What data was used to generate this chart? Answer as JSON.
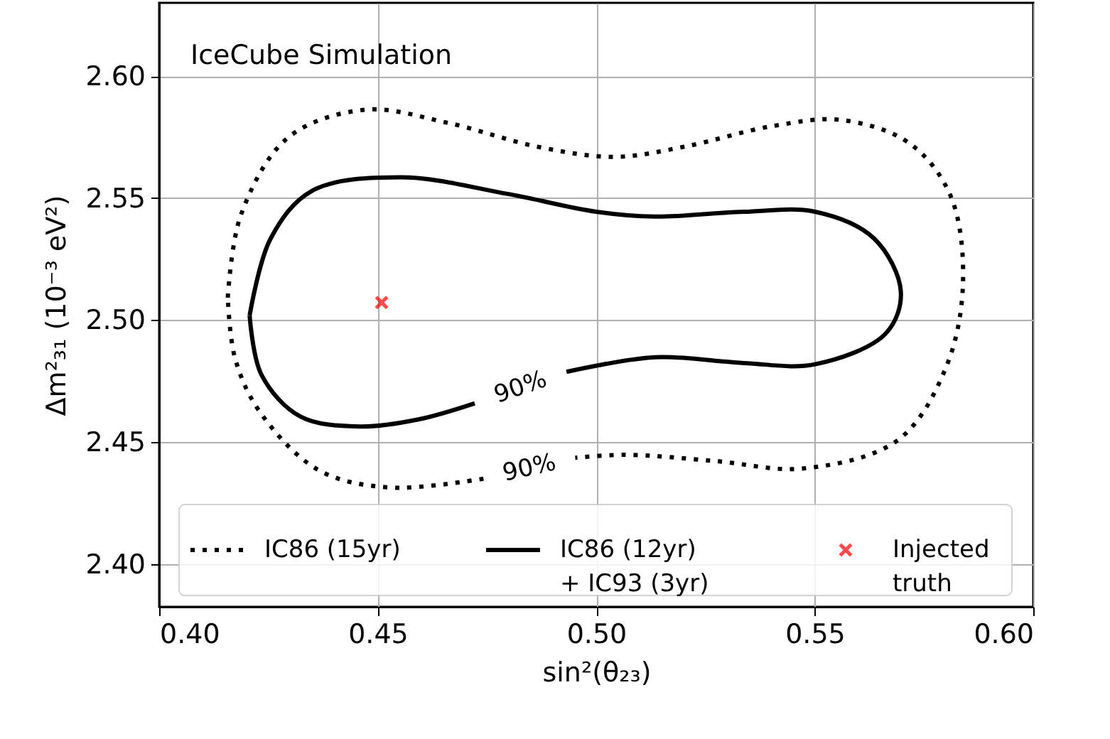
{
  "chart_data": {
    "type": "line",
    "xlabel": "sin²(θ₂₃)",
    "ylabel": "Δm²₃₁ (10⁻³ eV²)",
    "xlim": [
      0.4,
      0.6
    ],
    "ylim": [
      2.3825,
      2.63
    ],
    "xticks": [
      {
        "value": 0.4,
        "label": "0.40"
      },
      {
        "value": 0.45,
        "label": "0.45"
      },
      {
        "value": 0.5,
        "label": "0.50"
      },
      {
        "value": 0.55,
        "label": "0.55"
      },
      {
        "value": 0.6,
        "label": "0.60"
      }
    ],
    "yticks": [
      {
        "value": 2.4,
        "label": "2.40"
      },
      {
        "value": 2.45,
        "label": "2.45"
      },
      {
        "value": 2.5,
        "label": "2.50"
      },
      {
        "value": 2.55,
        "label": "2.55"
      },
      {
        "value": 2.6,
        "label": "2.60"
      }
    ],
    "grid": true,
    "legend": "bottom",
    "series": [
      {
        "name": "IC86 (15yr)",
        "line_style": "dotted",
        "color": "#000000",
        "x": [
          0.4157,
          0.4187,
          0.4295,
          0.4471,
          0.4661,
          0.4864,
          0.5041,
          0.5203,
          0.5406,
          0.5562,
          0.5718,
          0.5812,
          0.5839,
          0.5799,
          0.569,
          0.5474,
          0.527,
          0.5067,
          0.4952,
          0.4844,
          0.4742,
          0.4526,
          0.4363,
          0.4228,
          0.4173,
          0.4157
        ],
        "values": [
          2.5092,
          2.5431,
          2.5748,
          2.5862,
          2.5808,
          2.5711,
          2.5669,
          2.5711,
          2.5796,
          2.582,
          2.5723,
          2.5504,
          2.514,
          2.48,
          2.4508,
          2.4392,
          2.4423,
          2.4448,
          2.4436,
          null,
          2.435,
          2.4314,
          2.4387,
          2.463,
          2.4848,
          2.5092
        ]
      },
      {
        "name": "IC86 (12yr)\n+ IC93 (3yr)",
        "line_style": "solid",
        "color": "#000000",
        "x": [
          0.4207,
          0.4255,
          0.4349,
          0.4553,
          0.4797,
          0.5,
          0.5135,
          0.5338,
          0.5501,
          0.5636,
          0.5697,
          0.5663,
          0.5501,
          0.5338,
          0.5135,
          0.4932,
          0.4823,
          0.4722,
          0.4593,
          0.4458,
          0.4323,
          0.4234,
          0.4207
        ],
        "values": [
          2.5019,
          2.5334,
          2.5529,
          2.5585,
          2.5517,
          2.5444,
          2.5424,
          2.5444,
          2.5444,
          2.5334,
          2.5117,
          2.4946,
          2.4819,
          2.4824,
          2.4848,
          2.4788,
          null,
          2.4659,
          2.4593,
          2.4564,
          2.4605,
          2.4776,
          2.5019
        ]
      },
      {
        "name": "Injected\ntruth",
        "type": "scatter",
        "marker": "cross",
        "color": "#ff0000",
        "x": [
          0.4509
        ],
        "values": [
          2.5072
        ]
      }
    ],
    "annotations": [
      "IceCube Simulation",
      "90%",
      "90%"
    ]
  }
}
